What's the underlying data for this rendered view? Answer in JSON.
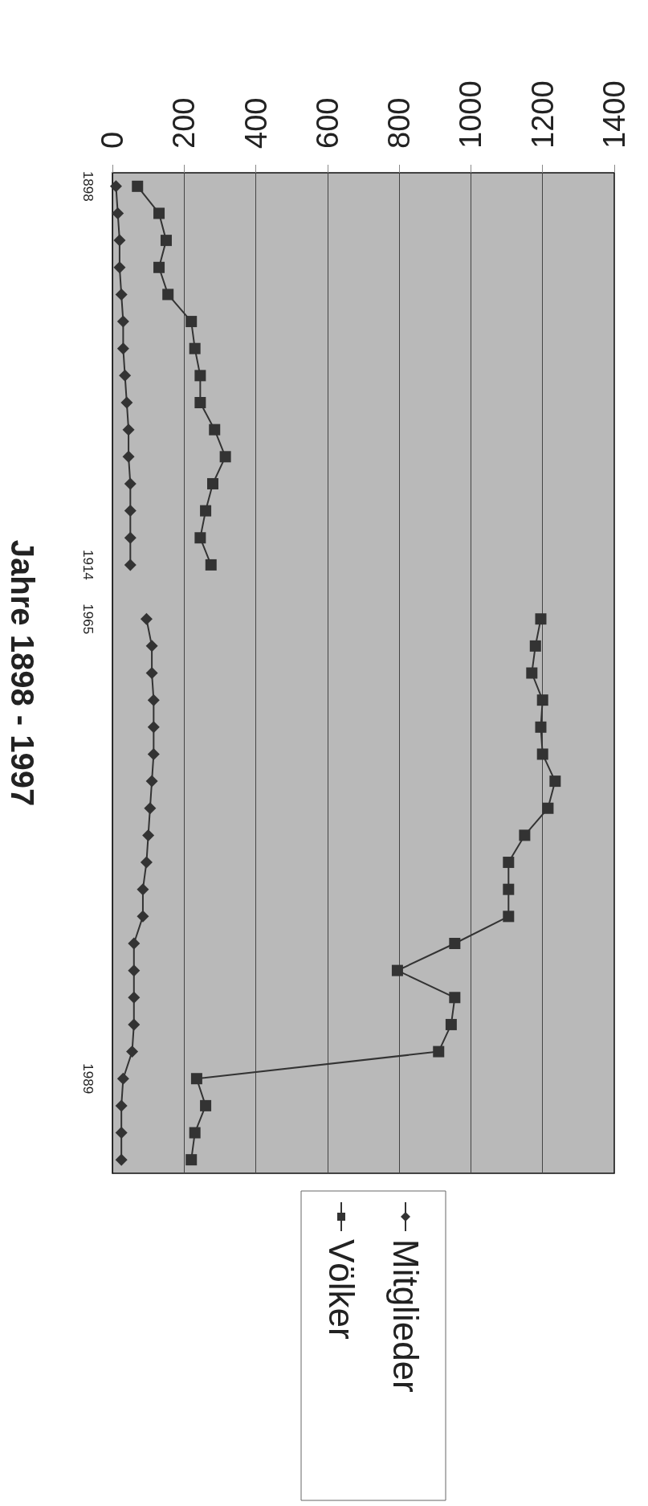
{
  "chart_data": {
    "type": "line",
    "orientation": "horizontal",
    "ylabel": "Jahre 1898 - 1997",
    "categories": [
      "1898",
      null,
      null,
      null,
      null,
      null,
      null,
      null,
      null,
      null,
      null,
      null,
      null,
      null,
      "1914",
      null,
      "1965",
      null,
      null,
      null,
      null,
      null,
      null,
      null,
      null,
      null,
      null,
      null,
      null,
      null,
      null,
      null,
      null,
      "1989",
      null,
      null,
      null
    ],
    "series": [
      {
        "name": "Mitglieder",
        "color": "#333333",
        "marker": "diamond",
        "values": [
          10,
          15,
          20,
          20,
          25,
          30,
          30,
          35,
          40,
          45,
          45,
          50,
          50,
          50,
          50,
          null,
          95,
          110,
          110,
          115,
          115,
          115,
          110,
          105,
          100,
          95,
          85,
          85,
          60,
          60,
          60,
          60,
          55,
          30,
          25,
          25,
          25
        ]
      },
      {
        "name": "Völker",
        "color": "#333333",
        "marker": "square",
        "values": [
          70,
          130,
          150,
          130,
          155,
          220,
          230,
          245,
          245,
          285,
          315,
          280,
          260,
          245,
          275,
          null,
          1195,
          1180,
          1170,
          1200,
          1195,
          1200,
          1235,
          1215,
          1150,
          1105,
          1105,
          1105,
          955,
          795,
          955,
          945,
          910,
          235,
          260,
          230,
          220
        ]
      }
    ],
    "xlim": [
      0,
      1400
    ],
    "xticks": [
      0,
      200,
      400,
      600,
      800,
      1000,
      1200,
      1400
    ],
    "grid": "x",
    "legend": "bottom",
    "line_style": "solid"
  }
}
